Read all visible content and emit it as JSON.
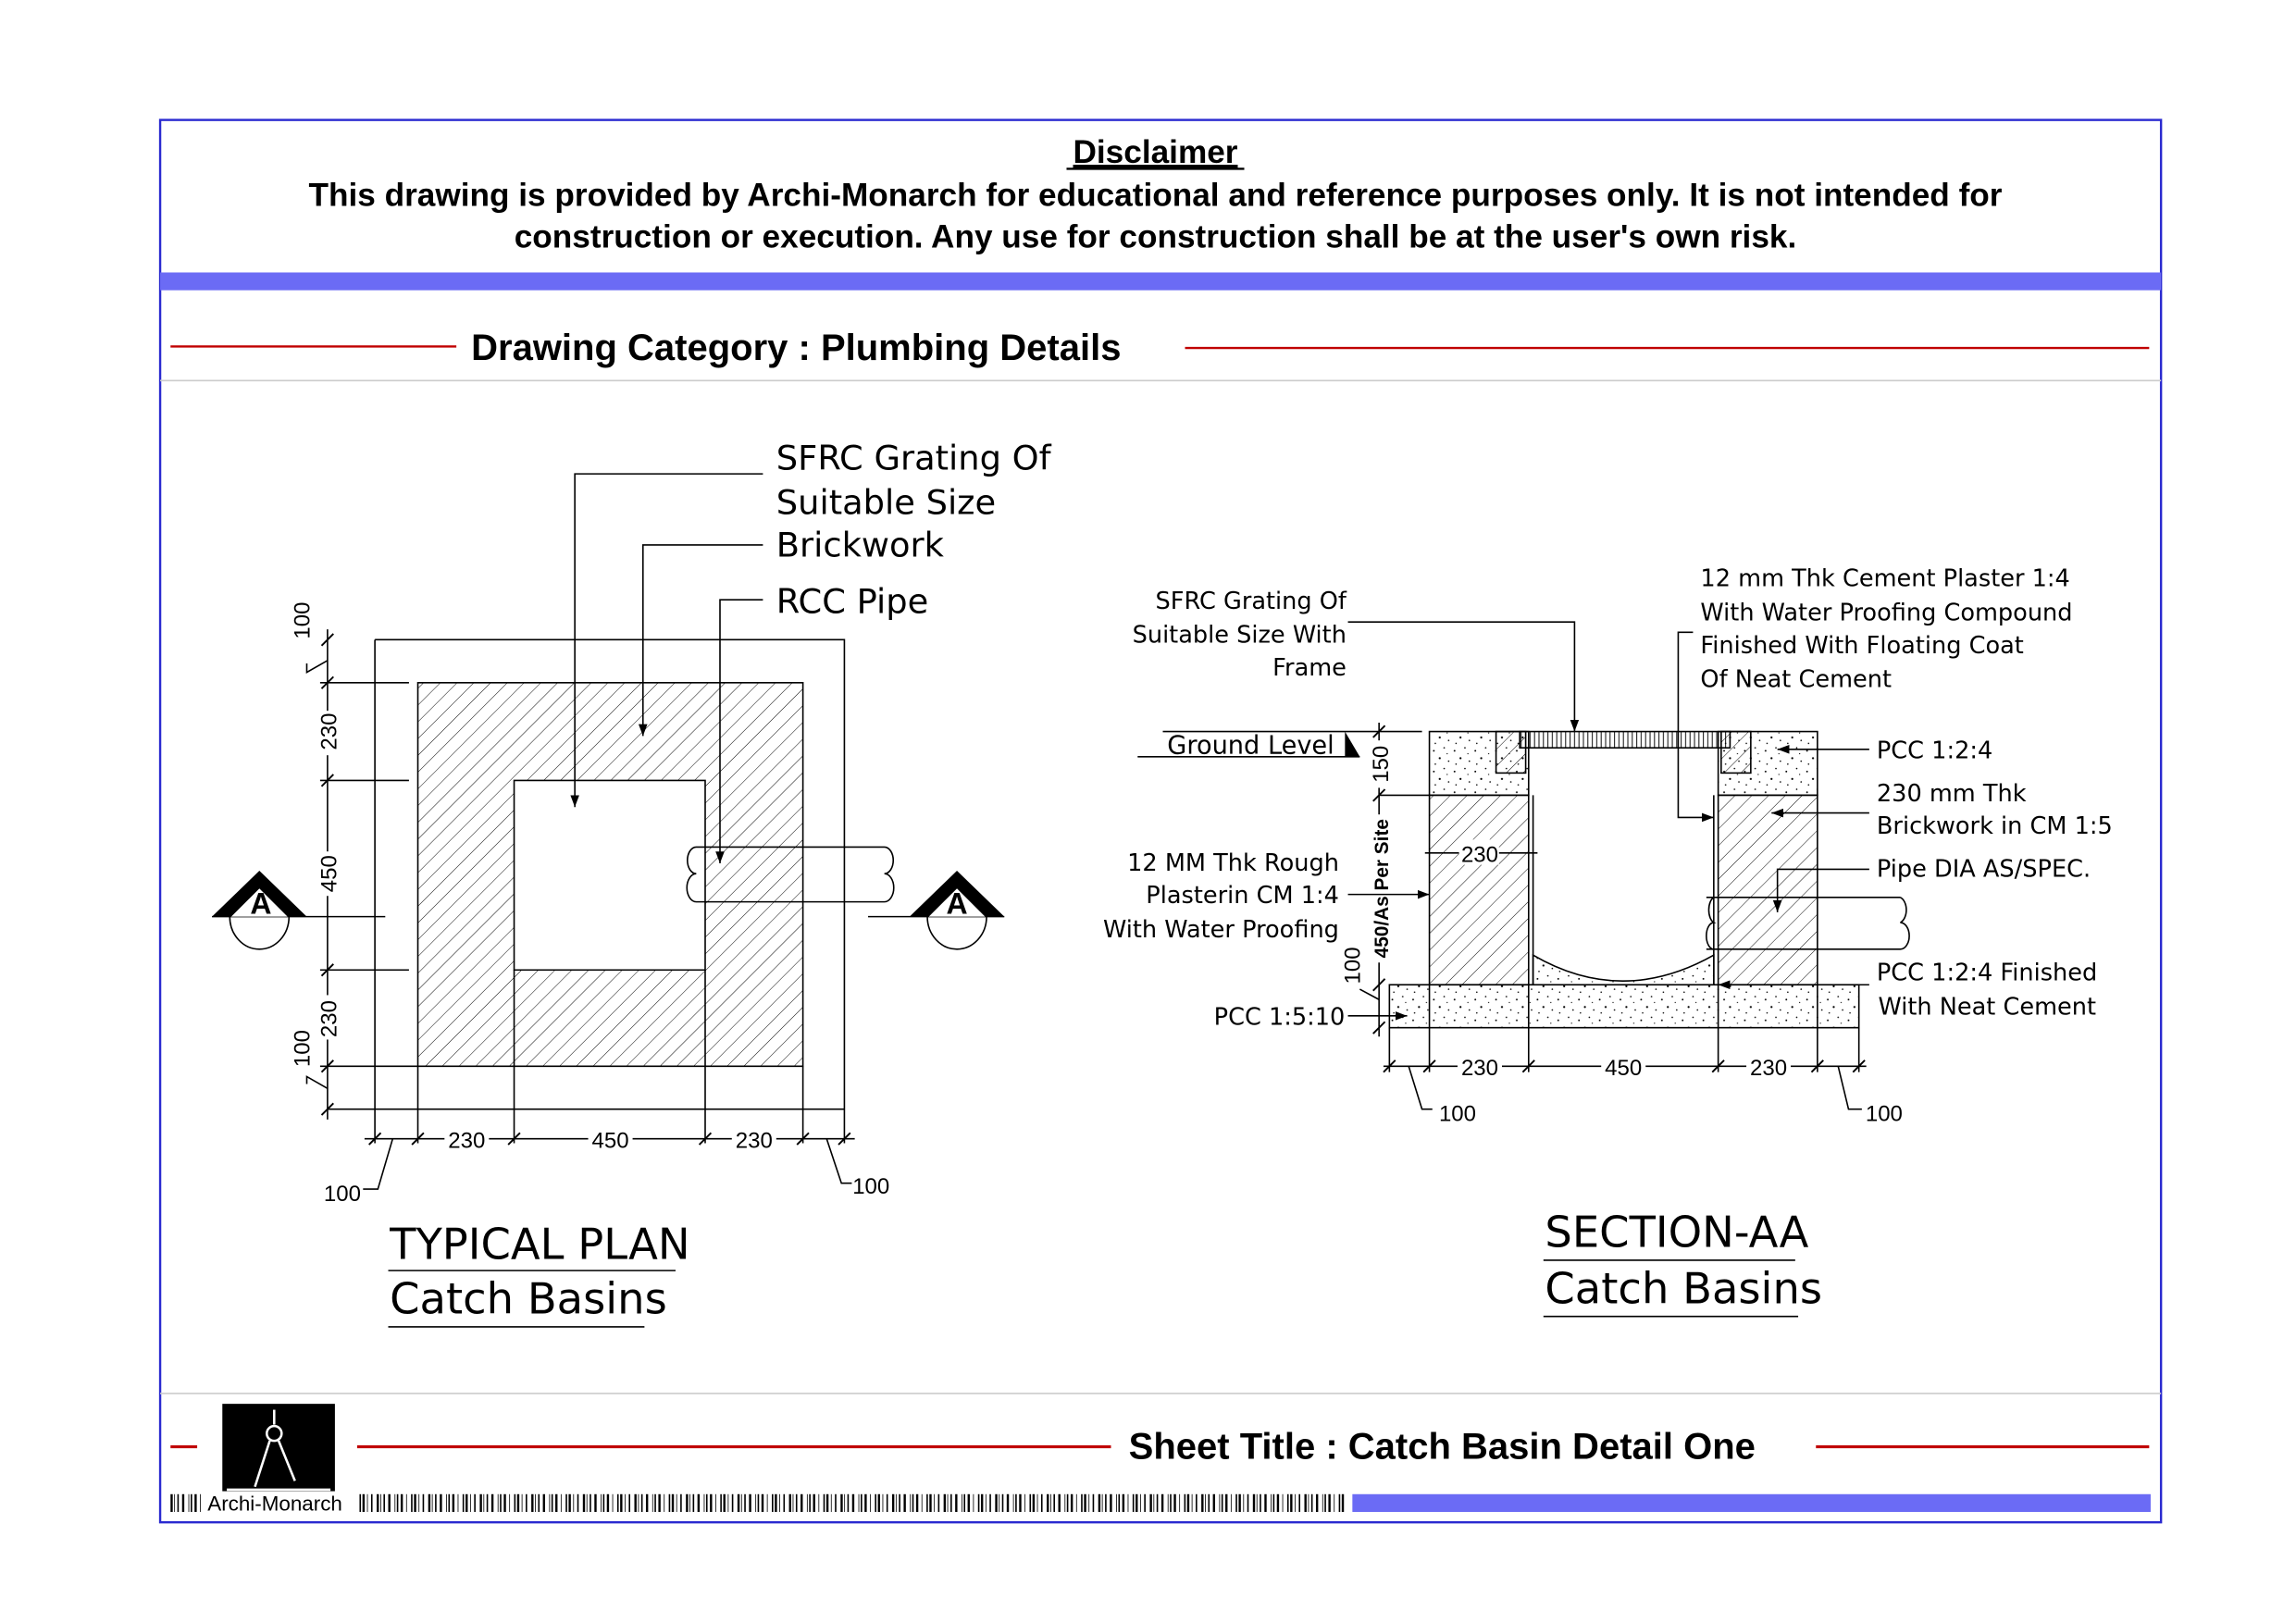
{
  "disclaimer": {
    "title": "Disclaimer",
    "line1": "This drawing is provided by Archi-Monarch for educational and reference purposes only. It is not intended for",
    "line2": "construction or execution. Any use for construction shall be at the user's own risk."
  },
  "category": "Drawing Category : Plumbing Details",
  "plan": {
    "title": "TYPICAL PLAN",
    "subtitle": "Catch Basins",
    "labels": [
      "SFRC Grating Of",
      "Suitable Size",
      "Brickwork",
      "RCC Pipe"
    ],
    "section_marker": "A",
    "dims_horizontal": [
      "230",
      "450",
      "230",
      "100",
      "100"
    ],
    "dims_vertical": [
      "100",
      "230",
      "450",
      "230",
      "100"
    ]
  },
  "section": {
    "title": "SECTION-AA",
    "subtitle": "Catch Basins",
    "grating_label": [
      "SFRC Grating Of",
      "Suitable Size With",
      "Frame"
    ],
    "plaster_label": [
      "12 mm Thk Cement Plaster 1:4",
      "With Water Proofing Compound",
      "Finished With Floating Coat",
      "Of Neat Cement"
    ],
    "ground_level": "Ground Level",
    "pcc_top": "PCC 1:2:4",
    "brick_label": [
      "230 mm Thk",
      "Brickwork in CM 1:5"
    ],
    "pipe_label": "Pipe DIA AS/SPEC.",
    "pcc_finish_label": [
      "PCC 1:2:4 Finished",
      "With Neat Cement"
    ],
    "rough_plaster_label": [
      "12 MM Thk Rough",
      "Plasterin CM 1:4",
      "With Water Proofing"
    ],
    "base_label": "PCC 1:5:10",
    "dims_vertical": [
      "150",
      "450/As Per Site",
      "100"
    ],
    "dim_wall": "230",
    "dims_horizontal": [
      "230",
      "450",
      "230",
      "100",
      "100"
    ]
  },
  "footer": {
    "brand": "Archi-Monarch",
    "sheet_title": "Sheet Title : Catch Basin Detail One"
  },
  "colors": {
    "border": "#2a2ad0",
    "accent_bar": "#6b6bf5",
    "rule_red": "#c00000"
  }
}
